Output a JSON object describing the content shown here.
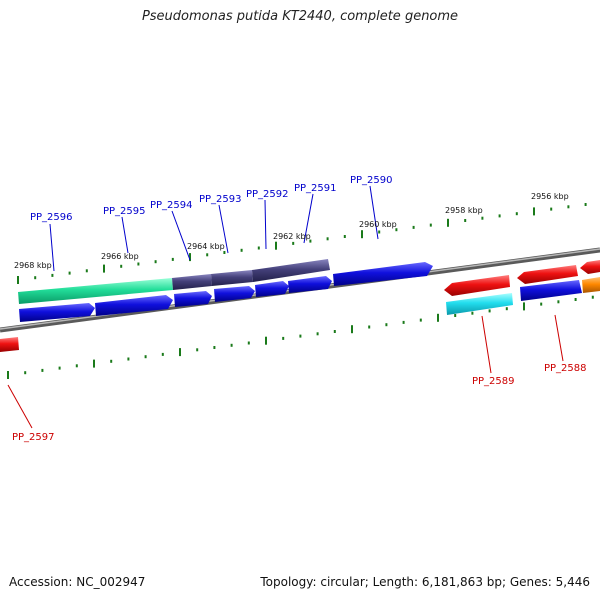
{
  "title": "Pseudomonas putida KT2440, complete genome",
  "footer": {
    "accession": "Accession: NC_002947",
    "topology": "Topology: circular; Length: 6,181,863 bp; Genes: 5,446"
  },
  "scale_labels": [
    "2968 kbp",
    "2966 kbp",
    "2964 kbp",
    "2962 kbp",
    "2960 kbp",
    "2958 kbp",
    "2956 kbp"
  ],
  "gene_labels": {
    "forward": [
      "PP_2596",
      "PP_2595",
      "PP_2594",
      "PP_2593",
      "PP_2592",
      "PP_2591",
      "PP_2590"
    ],
    "reverse": [
      "PP_2597",
      "PP_2589",
      "PP_2588"
    ]
  },
  "colors": {
    "forward_label": "#0000cc",
    "reverse_label": "#cc0000",
    "backbone": "#777777",
    "tick": "#1a7a1a",
    "blue_gene": "#1010dd",
    "purple_gene": "#44407a",
    "green_gene": "#22dd99",
    "red_gene": "#ee1111",
    "cyan_gene": "#22ddee",
    "orange_gene": "#ff8800"
  }
}
